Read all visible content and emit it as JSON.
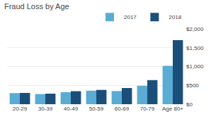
{
  "chart_data": {
    "type": "bar",
    "title": "Fraud Loss by Age",
    "categories": [
      "20-29",
      "30-39",
      "40-49",
      "50-59",
      "60-69",
      "70-79",
      "Age 80+"
    ],
    "series": [
      {
        "name": "2017",
        "color": "#5BACD4",
        "values": [
          295,
          270,
          320,
          360,
          350,
          490,
          1020
        ]
      },
      {
        "name": "2018",
        "color": "#1B4F7A",
        "values": [
          300,
          280,
          345,
          380,
          430,
          640,
          1700
        ]
      }
    ],
    "ylim": [
      0,
      2000
    ],
    "yticks": [
      {
        "value": 0,
        "label": "$0"
      },
      {
        "value": 500,
        "label": "$500"
      },
      {
        "value": 1000,
        "label": "$1,000"
      },
      {
        "value": 1500,
        "label": "$1,500"
      },
      {
        "value": 2000,
        "label": "$2,000"
      }
    ],
    "grid": true,
    "legend": "upper right"
  }
}
